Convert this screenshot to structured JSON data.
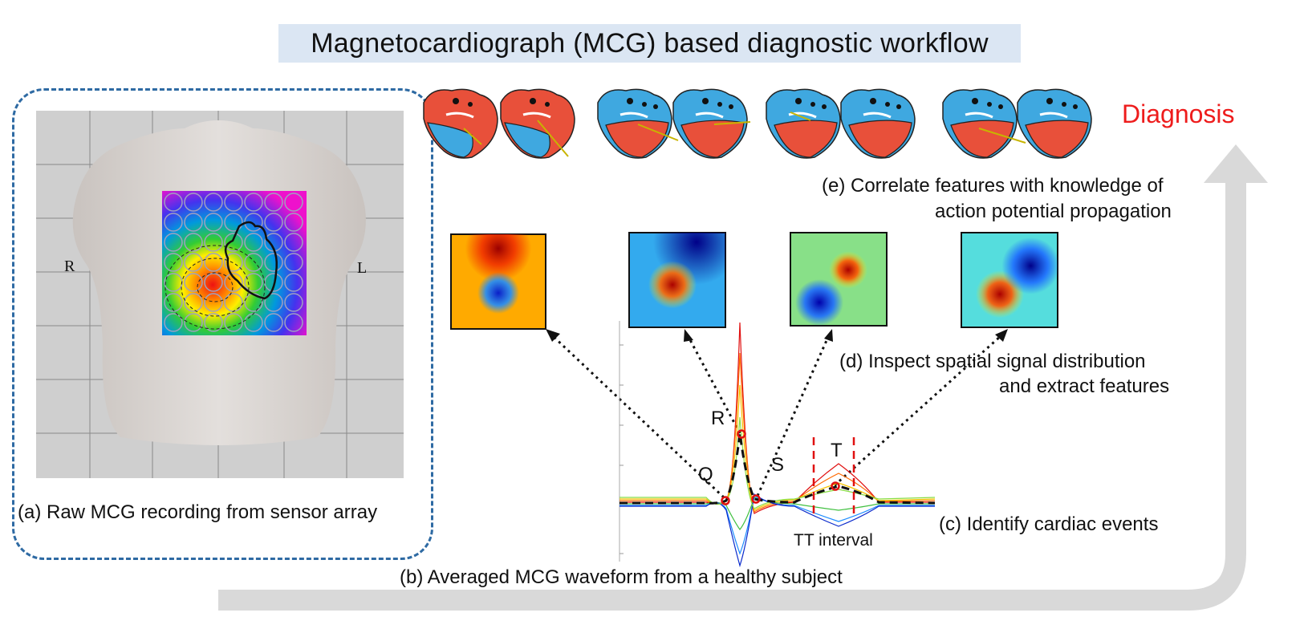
{
  "title": "Magnetocardiograph (MCG) based diagnostic workflow",
  "panel_a": {
    "caption": "(a) Raw MCG recording from sensor array",
    "left_marker": "R",
    "right_marker": "L"
  },
  "panel_b": {
    "caption": "(b) Averaged MCG waveform from a healthy subject"
  },
  "panel_c": {
    "caption": "(c)  Identify cardiac events",
    "tt_label": "TT interval",
    "wave_labels": {
      "q": "Q",
      "r": "R",
      "s": "S",
      "t": "T"
    }
  },
  "panel_d": {
    "caption_line1": "(d) Inspect spatial signal distribution",
    "caption_line2": "and extract features"
  },
  "panel_e": {
    "caption_line1": "(e)  Correlate features with knowledge of",
    "caption_line2": "action potential propagation"
  },
  "diagnosis": "Diagnosis",
  "colors": {
    "accent_red": "#ee1c1c",
    "dashed_border": "#2e6aa3",
    "title_bg": "#dbe6f3",
    "arrow_gray": "#d9d9d9",
    "heart_red": "#e8503a",
    "heart_blue": "#3fa8e0"
  }
}
